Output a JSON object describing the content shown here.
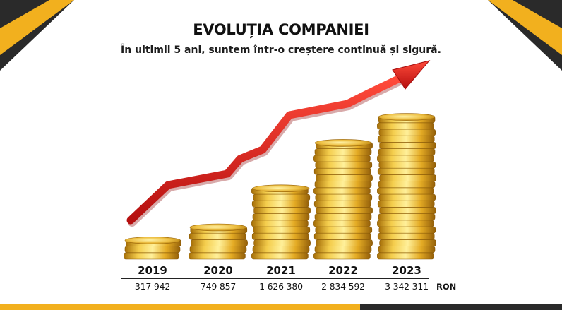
{
  "header": {
    "title": "EVOLUȚIA COMPANIEI",
    "subtitle": "În ultimii 5 ani, suntem într-o creștere continuă și sigură."
  },
  "colors": {
    "accent": "#f2b01e",
    "dark": "#2a2a2a",
    "arrow": "#d81f1f",
    "coin": "#e8b52a"
  },
  "chart_data": {
    "type": "bar",
    "title": "EVOLUȚIA COMPANIEI",
    "subtitle": "În ultimii 5 ani, suntem într-o creștere continuă și sigură.",
    "categories": [
      "2019",
      "2020",
      "2021",
      "2022",
      "2023"
    ],
    "values": [
      317942,
      749857,
      1626380,
      2834592,
      3342311
    ],
    "value_labels": [
      "317 942",
      "749 857",
      "1 626 380",
      "2 834 592",
      "3 342 311"
    ],
    "unit": "RON",
    "bar_style": "coin-stacks",
    "trend_arrow": true
  }
}
